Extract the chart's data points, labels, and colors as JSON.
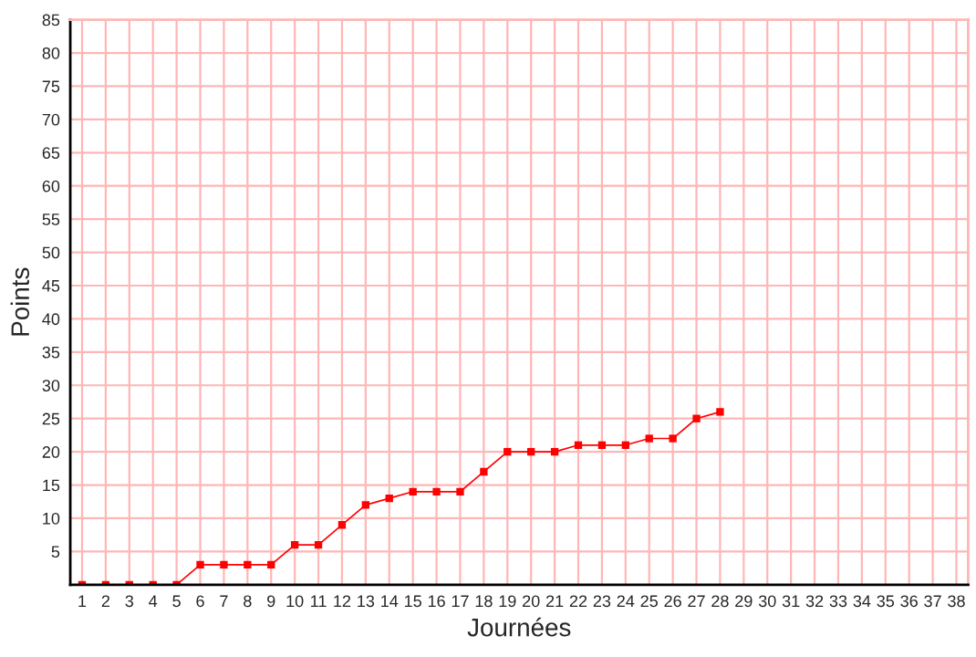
{
  "chart_data": {
    "type": "line",
    "xlabel": "Journées",
    "ylabel": "Points",
    "x": [
      1,
      2,
      3,
      4,
      5,
      6,
      7,
      8,
      9,
      10,
      11,
      12,
      13,
      14,
      15,
      16,
      17,
      18,
      19,
      20,
      21,
      22,
      23,
      24,
      25,
      26,
      27,
      28
    ],
    "series": [
      {
        "color": "#ff0000",
        "values": [
          0,
          0,
          0,
          0,
          0,
          3,
          3,
          3,
          3,
          6,
          6,
          9,
          12,
          13,
          14,
          14,
          14,
          17,
          20,
          20,
          20,
          21,
          21,
          21,
          22,
          22,
          25,
          26
        ]
      }
    ],
    "xlim": [
      0.5,
      38.5
    ],
    "xticks": [
      1,
      2,
      3,
      4,
      5,
      6,
      7,
      8,
      9,
      10,
      11,
      12,
      13,
      14,
      15,
      16,
      17,
      18,
      19,
      20,
      21,
      22,
      23,
      24,
      25,
      26,
      27,
      28,
      29,
      30,
      31,
      32,
      33,
      34,
      35,
      36,
      37,
      38
    ],
    "ylim": [
      0,
      85
    ],
    "yticks": [
      5,
      10,
      15,
      20,
      25,
      30,
      35,
      40,
      45,
      50,
      55,
      60,
      65,
      70,
      75,
      80,
      85
    ],
    "grid": true,
    "marker": "square",
    "line_style": "solid"
  }
}
